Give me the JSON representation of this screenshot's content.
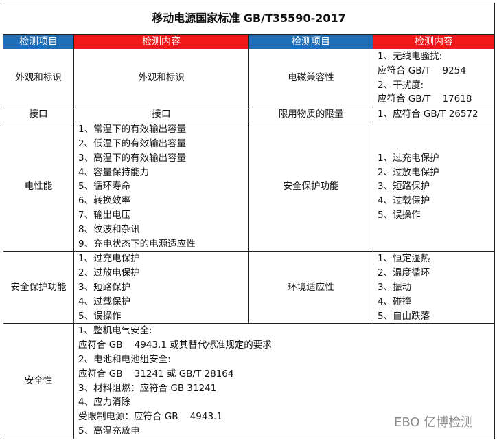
{
  "title": "移动电源国家标准 GB/T35590-2017",
  "headers": [
    "检测项目",
    "检测内容",
    "检测项目",
    "检测内容"
  ],
  "header_colors": {
    "blue": "#1f6fb8",
    "red": "#f01818"
  },
  "rows": [
    {
      "item1": "外观和标识",
      "content1": [
        "外观和标识"
      ],
      "item2": "电磁兼容性",
      "content2": [
        "1、无线电骚扰:",
        "应符合 GB/T    9254",
        "2、干扰度:",
        "应符合 GB/T    17618"
      ]
    },
    {
      "item1": "接口",
      "content1": [
        "接口"
      ],
      "item2": "限用物质的限量",
      "content2": [
        "1、应符合 GB/T 26572"
      ]
    },
    {
      "item1": "电性能",
      "content1": [
        "1、常温下的有效输出容量",
        "2、低温下的有效输出容量",
        "3、高温下的有效输出容量",
        "4、容量保持能力",
        "5、循环寿命",
        "6、转换效率",
        "7、输出电压",
        "8、纹波和杂讯",
        "9、充电状态下的电源适应性"
      ],
      "item2": "安全保护功能",
      "content2": [
        "1、过充电保护",
        "2、过放电保护",
        "3、短路保护",
        "4、过载保护",
        "5、误操作"
      ]
    },
    {
      "item1": "安全保护功能",
      "content1": [
        "1、过充电保护",
        "2、过放电保护",
        "3、短路保护",
        "4、过载保护",
        "5、误操作"
      ],
      "item2": "环境适应性",
      "content2": [
        "1、恒定湿热",
        "2、温度循环",
        "3、振动",
        "4、碰撞",
        "5、自由跌落"
      ]
    },
    {
      "item1": "安全性",
      "content1": [
        "1、整机电气安全:",
        "应符合 GB    4943.1 或其替代标准规定的要求",
        "2、电池和电池组安全:",
        "应符合 GB    31241 或 GB/T 28164",
        "3、材料阻燃：应符合 GB 31241",
        "4、应力消除",
        "受限制电源：应符合 GB    4943.1",
        "5、高温充放电"
      ]
    }
  ],
  "watermark": "EBO 亿博检测"
}
